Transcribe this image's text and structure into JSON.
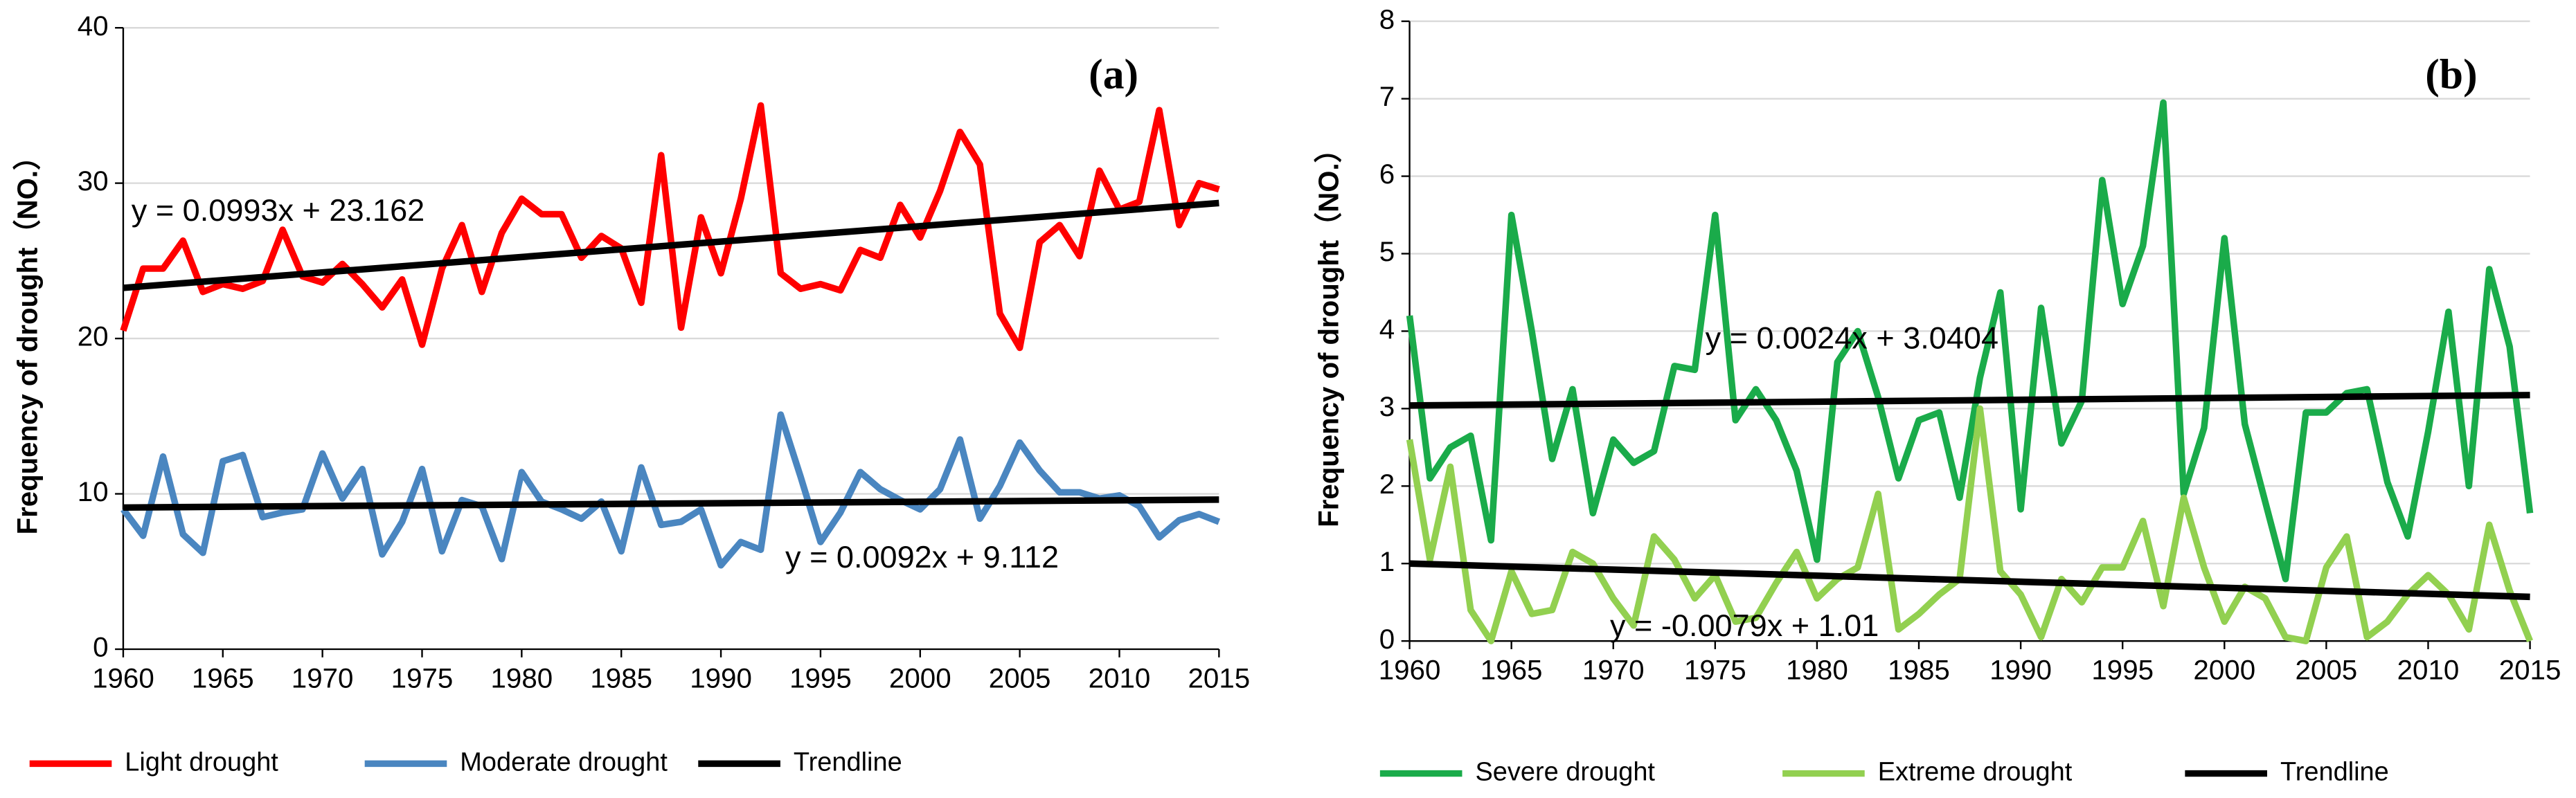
{
  "chart_data": [
    {
      "type": "line",
      "ylabel": "Frequency of drought（NO.）",
      "x": [
        1960,
        1961,
        1962,
        1963,
        1964,
        1965,
        1966,
        1967,
        1968,
        1969,
        1970,
        1971,
        1972,
        1973,
        1974,
        1975,
        1976,
        1977,
        1978,
        1979,
        1980,
        1981,
        1982,
        1983,
        1984,
        1985,
        1986,
        1987,
        1988,
        1989,
        1990,
        1991,
        1992,
        1993,
        1994,
        1995,
        1996,
        1997,
        1998,
        1999,
        2000,
        2001,
        2002,
        2003,
        2004,
        2005,
        2006,
        2007,
        2008,
        2009,
        2010,
        2011,
        2012,
        2013,
        2014,
        2015
      ],
      "series": [
        {
          "name": "Light drought",
          "color": "#ff0000",
          "values": [
            20.5,
            24.5,
            24.5,
            26.3,
            23,
            23.5,
            23.2,
            23.7,
            27,
            24,
            23.6,
            24.8,
            23.5,
            22,
            23.8,
            19.6,
            24.5,
            27.3,
            23,
            26.8,
            29,
            28,
            28,
            25.2,
            26.6,
            25.8,
            22.3,
            31.8,
            20.7,
            27.8,
            24.2,
            29,
            35,
            24.2,
            23.2,
            23.5,
            23.1,
            25.7,
            25.2,
            28.6,
            26.5,
            29.5,
            33.3,
            31.2,
            21.6,
            19.4,
            26.2,
            27.3,
            25.3,
            30.8,
            28.3,
            28.8,
            34.7,
            27.3,
            30,
            29.6
          ]
        },
        {
          "name": "Moderate drought",
          "color": "#4a86c0",
          "values": [
            9,
            7.3,
            12.4,
            7.4,
            6.2,
            12.1,
            12.5,
            8.5,
            8.8,
            9,
            12.6,
            9.7,
            11.6,
            6.1,
            8.2,
            11.6,
            6.3,
            9.6,
            9.2,
            5.8,
            11.4,
            9.5,
            9,
            8.4,
            9.5,
            6.3,
            11.7,
            8,
            8.2,
            9,
            5.4,
            6.9,
            6.4,
            15.1,
            11.1,
            6.9,
            8.8,
            11.4,
            10.3,
            9.6,
            9,
            10.3,
            13.5,
            8.4,
            10.5,
            13.3,
            11.5,
            10.1,
            10.1,
            9.7,
            9.9,
            9.2,
            7.2,
            8.3,
            8.7,
            8.2
          ]
        }
      ],
      "trendlines": {
        "name": "Trendline",
        "color": "#000000",
        "lines": [
          {
            "x": [
              1960,
              2015
            ],
            "values": [
              23.26,
              28.72
            ]
          },
          {
            "x": [
              1960,
              2015
            ],
            "values": [
              9.12,
              9.63
            ]
          }
        ]
      },
      "annotations": [
        "(a)",
        "y = 0.0993x + 23.162",
        "y = 0.0092x + 9.112"
      ],
      "xlim": [
        1960,
        2015
      ],
      "xticks": [
        1960,
        1965,
        1970,
        1975,
        1980,
        1985,
        1990,
        1995,
        2000,
        2005,
        2010,
        2015
      ],
      "ylim": [
        0,
        40
      ],
      "yticks": [
        0,
        10,
        20,
        30,
        40
      ],
      "grid": true,
      "legend": "bottom"
    },
    {
      "type": "line",
      "ylabel": "Frequency of drought（NO.）",
      "x": [
        1960,
        1961,
        1962,
        1963,
        1964,
        1965,
        1966,
        1967,
        1968,
        1969,
        1970,
        1971,
        1972,
        1973,
        1974,
        1975,
        1976,
        1977,
        1978,
        1979,
        1980,
        1981,
        1982,
        1983,
        1984,
        1985,
        1986,
        1987,
        1988,
        1989,
        1990,
        1991,
        1992,
        1993,
        1994,
        1995,
        1996,
        1997,
        1998,
        1999,
        2000,
        2001,
        2002,
        2003,
        2004,
        2005,
        2006,
        2007,
        2008,
        2009,
        2010,
        2011,
        2012,
        2013,
        2014,
        2015
      ],
      "series": [
        {
          "name": "Severe drought",
          "color": "#1aab4a",
          "values": [
            4.2,
            2.1,
            2.5,
            2.65,
            1.3,
            5.5,
            4,
            2.35,
            3.25,
            1.65,
            2.6,
            2.3,
            2.45,
            3.55,
            3.5,
            5.5,
            2.85,
            3.25,
            2.85,
            2.2,
            1.05,
            3.6,
            4,
            3.15,
            2.1,
            2.85,
            2.95,
            1.85,
            3.4,
            4.5,
            1.7,
            4.3,
            2.55,
            3.1,
            5.95,
            4.35,
            5.1,
            6.95,
            1.9,
            2.75,
            5.2,
            2.8,
            1.8,
            0.8,
            2.95,
            2.95,
            3.2,
            3.25,
            2.05,
            1.35,
            2.7,
            4.25,
            2,
            4.8,
            3.8,
            1.65
          ]
        },
        {
          "name": "Extreme drought",
          "color": "#92d050",
          "values": [
            2.6,
            1.05,
            2.25,
            0.4,
            0,
            0.9,
            0.35,
            0.4,
            1.15,
            1,
            0.55,
            0.2,
            1.35,
            1.05,
            0.55,
            0.85,
            0.25,
            0.3,
            0.75,
            1.15,
            0.55,
            0.8,
            0.95,
            1.9,
            0.15,
            0.35,
            0.6,
            0.8,
            3,
            0.9,
            0.6,
            0.05,
            0.8,
            0.5,
            0.95,
            0.95,
            1.55,
            0.45,
            1.85,
            0.95,
            0.25,
            0.7,
            0.55,
            0.05,
            0,
            0.95,
            1.35,
            0.05,
            0.25,
            0.6,
            0.85,
            0.6,
            0.15,
            1.5,
            0.65,
            0
          ]
        }
      ],
      "trendlines": {
        "name": "Trendline",
        "color": "#000000",
        "lines": [
          {
            "x": [
              1960,
              2015
            ],
            "values": [
              3.04,
              3.175
            ]
          },
          {
            "x": [
              1960,
              2015
            ],
            "values": [
              1.0,
              0.57
            ]
          }
        ]
      },
      "annotations": [
        "(b)",
        "y = 0.0024x + 3.0404",
        "y = -0.0079x + 1.01"
      ],
      "xlim": [
        1960,
        2015
      ],
      "xticks": [
        1960,
        1965,
        1970,
        1975,
        1980,
        1985,
        1990,
        1995,
        2000,
        2005,
        2010,
        2015
      ],
      "ylim": [
        0,
        8
      ],
      "yticks": [
        0,
        1,
        2,
        3,
        4,
        5,
        6,
        7,
        8
      ],
      "grid": true,
      "legend": "bottom"
    }
  ]
}
